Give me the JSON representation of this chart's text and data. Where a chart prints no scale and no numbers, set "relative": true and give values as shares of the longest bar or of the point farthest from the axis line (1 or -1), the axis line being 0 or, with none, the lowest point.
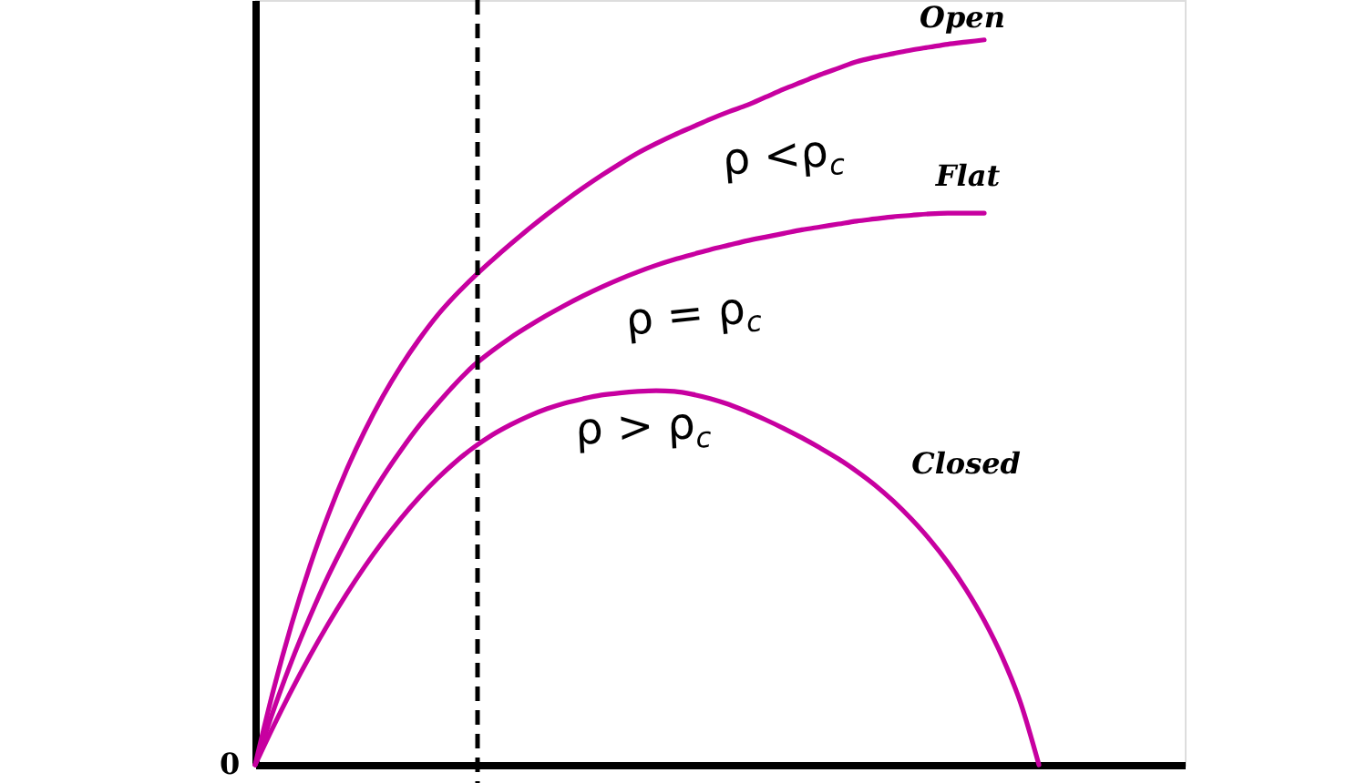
{
  "chart_data": {
    "type": "line",
    "relative": true,
    "categories": [
      null,
      null,
      null,
      null,
      null,
      null,
      null,
      null,
      null,
      null,
      null,
      null,
      null,
      null,
      null,
      null,
      null,
      null,
      null,
      null,
      null,
      null,
      null,
      null,
      null,
      null,
      null,
      null,
      null,
      null,
      null,
      null,
      null,
      null,
      null,
      null,
      null,
      null,
      null,
      null,
      null,
      null,
      null,
      null,
      null,
      null,
      null,
      null,
      null,
      null,
      null,
      null
    ],
    "series": [
      {
        "name": "Open",
        "color": "#c700a0",
        "values": [
          0,
          0.103,
          0.194,
          0.274,
          0.344,
          0.406,
          0.46,
          0.508,
          0.55,
          0.587,
          0.62,
          0.648,
          0.673,
          0.696,
          0.718,
          0.739,
          0.759,
          0.778,
          0.796,
          0.813,
          0.829,
          0.844,
          0.857,
          0.869,
          0.88,
          0.891,
          0.901,
          0.91,
          0.921,
          0.932,
          0.942,
          0.952,
          0.961,
          0.97,
          0.976,
          0.981,
          0.986,
          0.99,
          0.994,
          0.997,
          1.0,
          null,
          null,
          null,
          null,
          null,
          null,
          null,
          null,
          null,
          null,
          null
        ]
      },
      {
        "name": "Flat",
        "color": "#c700a0",
        "values": [
          0,
          0.075,
          0.143,
          0.204,
          0.26,
          0.31,
          0.356,
          0.397,
          0.434,
          0.468,
          0.498,
          0.526,
          0.551,
          0.571,
          0.589,
          0.605,
          0.62,
          0.634,
          0.647,
          0.659,
          0.67,
          0.68,
          0.689,
          0.697,
          0.704,
          0.711,
          0.717,
          0.723,
          0.728,
          0.733,
          0.738,
          0.742,
          0.746,
          0.75,
          0.753,
          0.756,
          0.758,
          0.76,
          0.761,
          0.761,
          0.761,
          null,
          null,
          null,
          null,
          null,
          null,
          null,
          null,
          null,
          null,
          null
        ]
      },
      {
        "name": "Closed",
        "color": "#c700a0",
        "values": [
          0,
          0.053,
          0.103,
          0.15,
          0.194,
          0.235,
          0.273,
          0.308,
          0.34,
          0.369,
          0.395,
          0.418,
          0.438,
          0.455,
          0.469,
          0.481,
          0.491,
          0.499,
          0.505,
          0.51,
          0.513,
          0.515,
          0.516,
          0.515,
          0.511,
          0.505,
          0.497,
          0.487,
          0.476,
          0.464,
          0.451,
          0.437,
          0.422,
          0.405,
          0.386,
          0.364,
          0.339,
          0.311,
          0.279,
          0.242,
          0.199,
          0.148,
          0.085,
          0,
          null,
          null,
          null,
          null,
          null,
          null,
          null,
          null
        ]
      }
    ],
    "annotations": [
      "ρ <ρ$_{c}$",
      "ρ = ρ$_{c}$",
      "ρ > ρ$_{c}$",
      "0"
    ]
  }
}
